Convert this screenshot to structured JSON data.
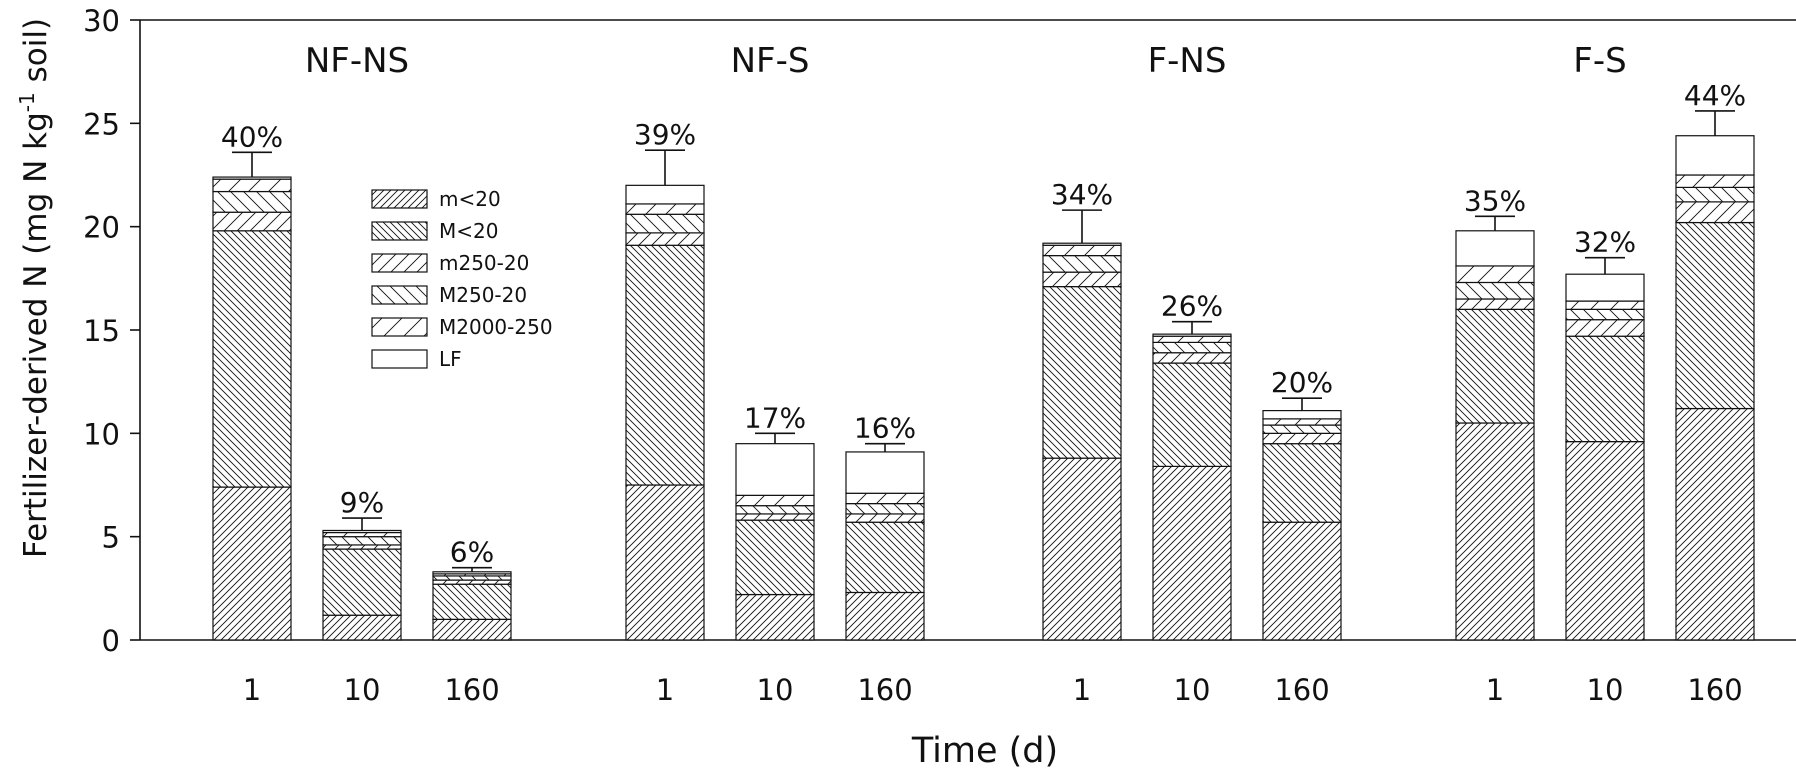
{
  "chart_data": {
    "type": "bar",
    "stacked": true,
    "xlabel": "Time (d)",
    "ylabel": "Fertilizer-derived N (mg N kg-1 soil)",
    "ylabel_parts": {
      "before": "Fertilizer-derived N (mg N kg",
      "sup": "-1",
      "after": " soil)"
    },
    "ylim": [
      0,
      30
    ],
    "yticks": [
      0,
      5,
      10,
      15,
      20,
      25,
      30
    ],
    "grid": false,
    "legend_position": "inside-top-left",
    "fraction_order_bottom_to_top": [
      "m<20",
      "M<20",
      "m250-20",
      "M250-20",
      "M2000-250",
      "LF"
    ],
    "legend": [
      "m<20",
      "M<20",
      "m250-20",
      "M250-20",
      "M2000-250",
      "LF"
    ],
    "groups": [
      {
        "name": "NF-NS",
        "bars": [
          {
            "time": "1",
            "label": "40%",
            "error": 1.2,
            "values": [
              7.4,
              12.4,
              0.9,
              1.0,
              0.6,
              0.1
            ]
          },
          {
            "time": "10",
            "label": "9%",
            "error": 0.6,
            "values": [
              1.2,
              3.2,
              0.2,
              0.4,
              0.2,
              0.1
            ]
          },
          {
            "time": "160",
            "label": "6%",
            "error": 0.2,
            "values": [
              1.0,
              1.7,
              0.2,
              0.2,
              0.1,
              0.1
            ]
          }
        ]
      },
      {
        "name": "NF-S",
        "bars": [
          {
            "time": "1",
            "label": "39%",
            "error": 1.7,
            "values": [
              7.5,
              11.6,
              0.6,
              0.9,
              0.5,
              0.9
            ]
          },
          {
            "time": "10",
            "label": "17%",
            "error": 0.5,
            "values": [
              2.2,
              3.6,
              0.3,
              0.4,
              0.5,
              2.5
            ]
          },
          {
            "time": "160",
            "label": "16%",
            "error": 0.4,
            "values": [
              2.3,
              3.4,
              0.4,
              0.5,
              0.5,
              2.0
            ]
          }
        ]
      },
      {
        "name": "F-NS",
        "bars": [
          {
            "time": "1",
            "label": "34%",
            "error": 1.6,
            "values": [
              8.8,
              8.3,
              0.7,
              0.8,
              0.5,
              0.1
            ]
          },
          {
            "time": "10",
            "label": "26%",
            "error": 0.6,
            "values": [
              8.4,
              5.0,
              0.5,
              0.5,
              0.3,
              0.1
            ]
          },
          {
            "time": "160",
            "label": "20%",
            "error": 0.6,
            "values": [
              5.7,
              3.8,
              0.5,
              0.4,
              0.3,
              0.4
            ]
          }
        ]
      },
      {
        "name": "F-S",
        "bars": [
          {
            "time": "1",
            "label": "35%",
            "error": 0.7,
            "values": [
              10.5,
              5.5,
              0.5,
              0.8,
              0.8,
              1.7
            ]
          },
          {
            "time": "10",
            "label": "32%",
            "error": 0.8,
            "values": [
              9.6,
              5.1,
              0.8,
              0.5,
              0.4,
              1.3
            ]
          },
          {
            "time": "160",
            "label": "44%",
            "error": 1.2,
            "values": [
              11.2,
              9.0,
              1.0,
              0.7,
              0.6,
              1.9
            ]
          }
        ]
      }
    ]
  }
}
